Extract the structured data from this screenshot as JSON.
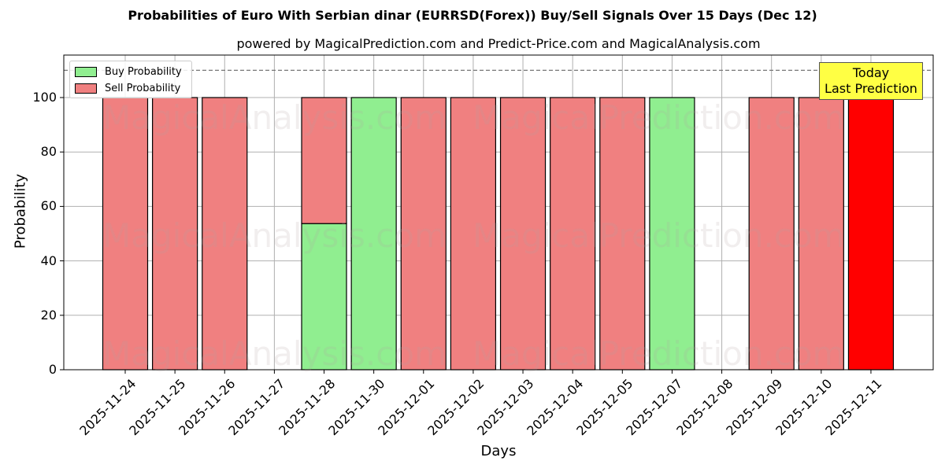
{
  "title": "Probabilities of Euro With Serbian dinar (EURRSD(Forex)) Buy/Sell Signals Over 15 Days (Dec 12)",
  "subtitle": "powered by MagicalPrediction.com and Predict-Price.com and MagicalAnalysis.com",
  "legend": {
    "buy": "Buy Probability",
    "sell": "Sell Probability"
  },
  "annotation": {
    "line1": "Today",
    "line2": "Last Prediction"
  },
  "watermarks": [
    "MagicalAnalysis.com",
    "MagicalPrediction.com"
  ],
  "colors": {
    "buy": "#90ee90",
    "sell": "#f08080",
    "today_sell": "#ff0000",
    "annotation_bg": "#ffff44"
  },
  "chart_data": {
    "type": "bar",
    "stacked": true,
    "title": "Probabilities of Euro With Serbian dinar (EURRSD(Forex)) Buy/Sell Signals Over 15 Days (Dec 12)",
    "xlabel": "Days",
    "ylabel": "Probability",
    "ylim": [
      0,
      115
    ],
    "yticks": [
      0,
      20,
      40,
      60,
      80,
      100
    ],
    "reference_line": 110,
    "grid": true,
    "legend_position": "upper left",
    "categories": [
      "2025-11-24",
      "2025-11-25",
      "2025-11-26",
      "2025-11-27",
      "2025-11-28",
      "2025-11-30",
      "2025-12-01",
      "2025-12-02",
      "2025-12-03",
      "2025-12-04",
      "2025-12-05",
      "2025-12-07",
      "2025-12-08",
      "2025-12-09",
      "2025-12-10",
      "2025-12-11"
    ],
    "series": [
      {
        "name": "Buy Probability",
        "values": [
          0,
          0,
          0,
          0,
          53.7,
          100,
          0,
          0,
          0,
          0,
          0,
          100,
          0,
          0,
          0,
          0
        ]
      },
      {
        "name": "Sell Probability",
        "values": [
          100,
          100,
          100,
          0,
          46.3,
          0,
          100,
          100,
          100,
          100,
          100,
          0,
          0,
          100,
          100,
          100
        ]
      }
    ],
    "annotations": [
      {
        "text": "Today\nLast Prediction",
        "x": "2025-12-11"
      }
    ]
  }
}
